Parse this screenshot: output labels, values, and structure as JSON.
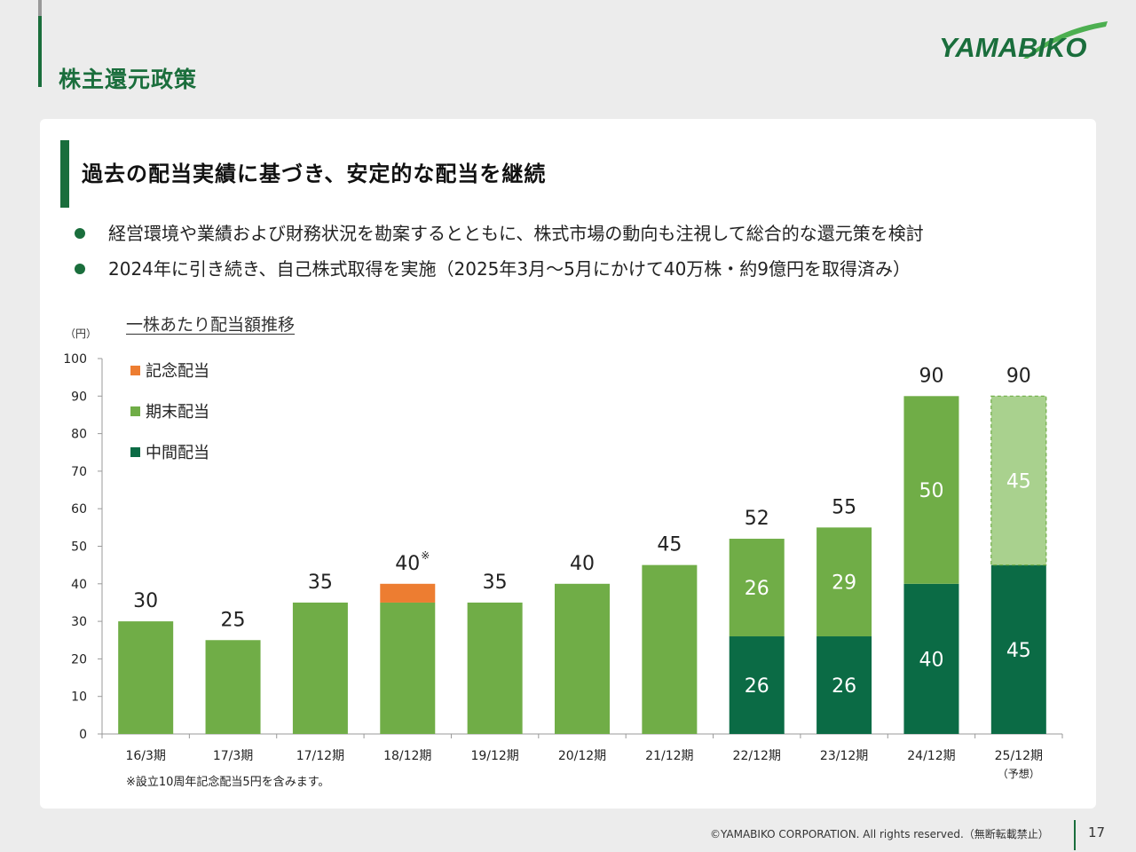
{
  "header": {
    "title": "株主還元政策",
    "logo_text": "YAMABIKO"
  },
  "section": {
    "heading": "過去の配当実績に基づき、安定的な配当を継続"
  },
  "bullets": [
    "経営環境や業績および財務状況を勘案するとともに、株式市場の動向も注視して総合的な還元策を検討",
    "2024年に引き続き、自己株式取得を実施（2025年3月～5月にかけて40万株・約9億円を取得済み）"
  ],
  "chart_title": "一株あたり配当額推移",
  "chart_data": {
    "type": "bar",
    "stacked": true,
    "categories": [
      "16/3期",
      "17/3期",
      "17/12期",
      "18/12期",
      "19/12期",
      "20/12期",
      "21/12期",
      "22/12期",
      "23/12期",
      "24/12期",
      "25/12期"
    ],
    "category_sublabels": [
      "",
      "",
      "",
      "",
      "",
      "",
      "",
      "",
      "",
      "",
      "（予想）"
    ],
    "series": [
      {
        "name": "中間配当",
        "color": "#0b6b45",
        "values": [
          0,
          0,
          0,
          0,
          0,
          0,
          0,
          26,
          26,
          40,
          45
        ],
        "labels": [
          null,
          null,
          null,
          null,
          null,
          null,
          null,
          "26",
          "26",
          "40",
          "45"
        ]
      },
      {
        "name": "期末配当",
        "color": "#70ad47",
        "values": [
          30,
          25,
          35,
          35,
          35,
          40,
          45,
          26,
          29,
          50,
          45
        ],
        "labels": [
          null,
          null,
          null,
          null,
          null,
          null,
          null,
          "26",
          "29",
          "50",
          "45"
        ]
      },
      {
        "name": "記念配当",
        "color": "#ed7d31",
        "values": [
          0,
          0,
          0,
          5,
          0,
          0,
          0,
          0,
          0,
          0,
          0
        ],
        "labels": [
          null,
          null,
          null,
          null,
          null,
          null,
          null,
          null,
          null,
          null,
          null
        ]
      }
    ],
    "totals": [
      "30",
      "25",
      "35",
      "40",
      "35",
      "40",
      "45",
      "52",
      "55",
      "90",
      "90"
    ],
    "total_marks": [
      "",
      "",
      "",
      "※",
      "",
      "",
      "",
      "",
      "",
      "",
      ""
    ],
    "forecast_index": 10,
    "forecast_colors": {
      "期末配当": "#a9d18e"
    },
    "legend": [
      "記念配当",
      "期末配当",
      "中間配当"
    ],
    "legend_position": "top-left",
    "yunit": "（円）",
    "ylim": [
      0,
      100
    ],
    "yticks": [
      0,
      10,
      20,
      30,
      40,
      50,
      60,
      70,
      80,
      90,
      100
    ],
    "note": "※設立10周年記念配当5円を含みます。"
  },
  "footer": {
    "copyright": "©YAMABIKO CORPORATION. All rights reserved.（無断転載禁止）",
    "page_number": "17"
  }
}
